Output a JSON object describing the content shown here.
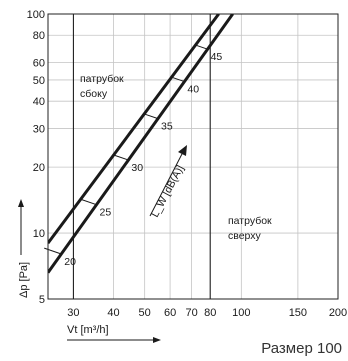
{
  "chart_data": {
    "type": "line",
    "x_scale": "log",
    "y_scale": "log",
    "xlim": [
      25,
      200
    ],
    "ylim": [
      5,
      100
    ],
    "x_ticks": [
      30,
      40,
      50,
      60,
      70,
      80,
      100,
      150,
      200
    ],
    "y_ticks": [
      5,
      10,
      20,
      30,
      40,
      50,
      60,
      80,
      100
    ],
    "xlabel": "Vt [m³/h]",
    "ylabel": "Δp [Pa]",
    "grid": true,
    "series": [
      {
        "name": "патрубок сбоку",
        "x": [
          25,
          85
        ],
        "y": [
          9,
          100
        ]
      },
      {
        "name": "патрубок сверху",
        "x": [
          25,
          94
        ],
        "y": [
          6.6,
          100
        ]
      }
    ],
    "noise_levels": {
      "label": "L_W [dB(A)]",
      "values": [
        20,
        25,
        30,
        35,
        40,
        45
      ],
      "x_on_lower_curve": [
        27.5,
        35.4,
        44.5,
        55,
        66.5,
        78.5
      ]
    },
    "annotations": [
      {
        "text_lines": [
          "патрубок",
          "сбоку"
        ],
        "anchor_x": 30.3,
        "anchor_y": 60
      },
      {
        "text_lines": [
          "патрубок",
          "сверху"
        ],
        "anchor_x": 87,
        "anchor_y": 15
      }
    ],
    "title": "",
    "caption": "Размер 100"
  }
}
